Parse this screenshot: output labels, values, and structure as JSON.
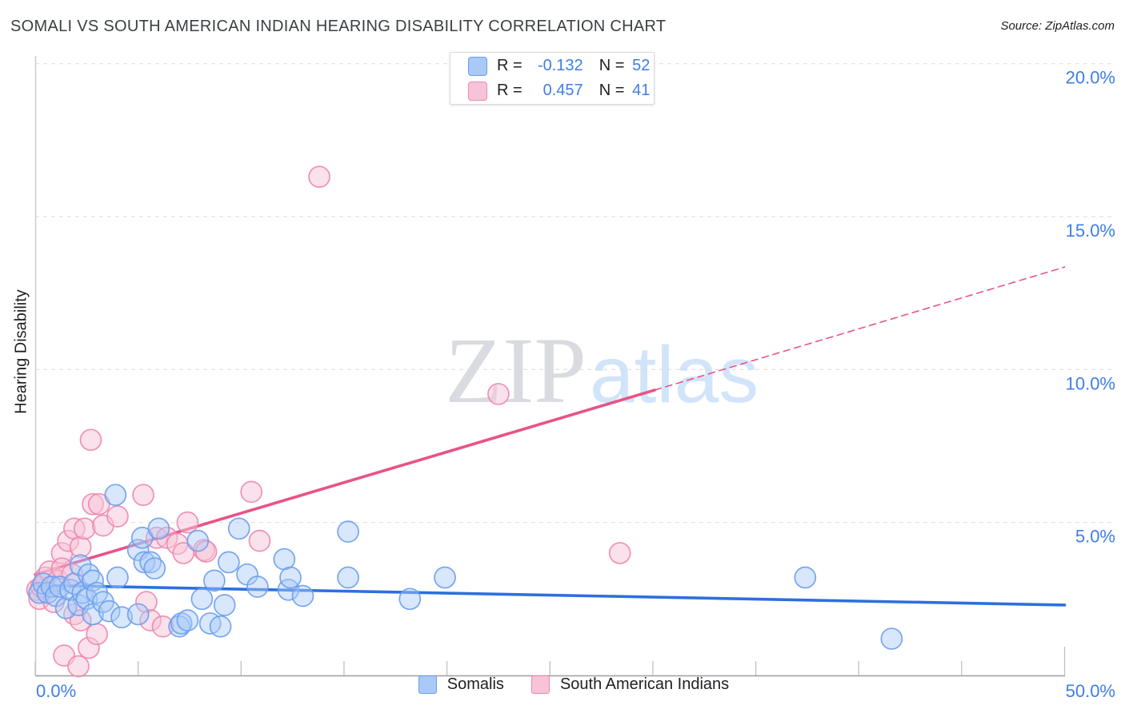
{
  "header": {
    "title": "SOMALI VS SOUTH AMERICAN INDIAN HEARING DISABILITY CORRELATION CHART",
    "source": "Source: ZipAtlas.com"
  },
  "watermark": {
    "zip": "ZIP",
    "atlas": "atlas"
  },
  "legend_box": {
    "rows": [
      {
        "series": "somalis",
        "r_label": "R =",
        "r_value": "-0.132",
        "n_label": "N =",
        "n_value": "52"
      },
      {
        "series": "south-american-indians",
        "r_label": "R =",
        "r_value": "0.457",
        "n_label": "N =",
        "n_value": "41"
      }
    ]
  },
  "bottom_legend": {
    "items": [
      {
        "label": "Somalis"
      },
      {
        "label": "South American Indians"
      }
    ]
  },
  "colors": {
    "accent_blue": "#3e7de8",
    "somali_stroke": "#6a9cf0",
    "somali_fill": "#a9c9f7",
    "somali_line": "#2e6fdd",
    "sai_stroke": "#ee86ad",
    "sai_fill": "#f8c3d8",
    "sai_line": "#e85387",
    "gridline": "#e3e3e3",
    "axis": "#9e9e9e",
    "watermark_zip": "#d9dbe0",
    "watermark_atlas": "#c8def8"
  },
  "chart_data": {
    "type": "scatter",
    "title": "SOMALI VS SOUTH AMERICAN INDIAN HEARING DISABILITY CORRELATION CHART",
    "xlabel": "",
    "ylabel": "Hearing Disability",
    "xlim": [
      0,
      50
    ],
    "ylim": [
      0,
      20.3
    ],
    "grid": "horizontal-dashed",
    "legend_position": "bottom-center",
    "x_tick_values": [
      0,
      5,
      10,
      15,
      20,
      25,
      30,
      35,
      40,
      45,
      50
    ],
    "x_edge_labels": [
      {
        "value": 0,
        "label": "0.0%"
      },
      {
        "value": 50,
        "label": "50.0%"
      }
    ],
    "y_ticks": [
      {
        "value": 20,
        "label": "20.0%"
      },
      {
        "value": 15,
        "label": "15.0%"
      },
      {
        "value": 10,
        "label": "10.0%"
      },
      {
        "value": 5,
        "label": "5.0%"
      }
    ],
    "series": [
      {
        "name": "Somalis",
        "key": "somalis",
        "R": -0.132,
        "N": 52,
        "points": [
          [
            0.2,
            2.7
          ],
          [
            0.4,
            3.0
          ],
          [
            0.6,
            2.7
          ],
          [
            0.8,
            2.9
          ],
          [
            1.0,
            2.6
          ],
          [
            1.2,
            2.9
          ],
          [
            1.5,
            2.2
          ],
          [
            1.7,
            2.8
          ],
          [
            1.9,
            3.0
          ],
          [
            2.1,
            2.3
          ],
          [
            2.2,
            3.6
          ],
          [
            2.3,
            2.7
          ],
          [
            2.5,
            2.5
          ],
          [
            2.6,
            3.3
          ],
          [
            2.8,
            3.1
          ],
          [
            2.8,
            2.0
          ],
          [
            3.0,
            2.7
          ],
          [
            3.3,
            2.4
          ],
          [
            3.6,
            2.1
          ],
          [
            3.9,
            5.9
          ],
          [
            4.0,
            3.2
          ],
          [
            4.2,
            1.9
          ],
          [
            5.0,
            2.0
          ],
          [
            5.0,
            4.1
          ],
          [
            5.2,
            4.5
          ],
          [
            5.3,
            3.7
          ],
          [
            5.6,
            3.7
          ],
          [
            5.8,
            3.5
          ],
          [
            6.0,
            4.8
          ],
          [
            7.0,
            1.6
          ],
          [
            7.1,
            1.7
          ],
          [
            7.4,
            1.8
          ],
          [
            7.9,
            4.4
          ],
          [
            8.1,
            2.5
          ],
          [
            8.5,
            1.7
          ],
          [
            8.7,
            3.1
          ],
          [
            9.0,
            1.6
          ],
          [
            9.2,
            2.3
          ],
          [
            9.4,
            3.7
          ],
          [
            9.9,
            4.8
          ],
          [
            10.3,
            3.3
          ],
          [
            10.8,
            2.9
          ],
          [
            12.1,
            3.8
          ],
          [
            12.3,
            2.8
          ],
          [
            12.4,
            3.2
          ],
          [
            13.0,
            2.6
          ],
          [
            15.2,
            4.7
          ],
          [
            15.2,
            3.2
          ],
          [
            18.2,
            2.5
          ],
          [
            19.9,
            3.2
          ],
          [
            37.4,
            3.2
          ],
          [
            41.6,
            1.2
          ]
        ]
      },
      {
        "name": "South American Indians",
        "key": "south-american-indians",
        "R": 0.457,
        "N": 41,
        "points": [
          [
            0.1,
            2.8
          ],
          [
            0.2,
            2.5
          ],
          [
            0.3,
            2.9
          ],
          [
            0.5,
            3.2
          ],
          [
            0.7,
            3.4
          ],
          [
            0.9,
            2.4
          ],
          [
            1.1,
            3.1
          ],
          [
            1.3,
            4.0
          ],
          [
            1.3,
            3.5
          ],
          [
            1.4,
            0.65
          ],
          [
            1.6,
            4.4
          ],
          [
            1.8,
            3.3
          ],
          [
            1.9,
            4.8
          ],
          [
            1.9,
            2.0
          ],
          [
            2.1,
            0.3
          ],
          [
            2.2,
            4.2
          ],
          [
            2.2,
            1.8
          ],
          [
            2.4,
            4.8
          ],
          [
            2.6,
            0.9
          ],
          [
            2.7,
            7.7
          ],
          [
            2.8,
            5.6
          ],
          [
            3.0,
            1.35
          ],
          [
            3.1,
            5.6
          ],
          [
            3.3,
            4.9
          ],
          [
            4.0,
            5.2
          ],
          [
            5.25,
            5.9
          ],
          [
            5.4,
            2.4
          ],
          [
            5.6,
            1.8
          ],
          [
            5.9,
            4.5
          ],
          [
            6.2,
            1.6
          ],
          [
            6.4,
            4.5
          ],
          [
            6.9,
            4.3
          ],
          [
            7.2,
            4.0
          ],
          [
            7.4,
            5.0
          ],
          [
            8.2,
            4.1
          ],
          [
            8.3,
            4.05
          ],
          [
            10.5,
            6.0
          ],
          [
            10.9,
            4.4
          ],
          [
            13.8,
            16.3
          ],
          [
            22.5,
            9.2
          ],
          [
            28.4,
            4.0
          ]
        ]
      }
    ],
    "trend_lines": [
      {
        "series": "somalis",
        "x": [
          0,
          50
        ],
        "y": [
          2.95,
          2.3
        ],
        "dashed": false
      },
      {
        "series": "south-american-indians",
        "x": [
          0,
          30.1
        ],
        "y": [
          3.3,
          9.33
        ],
        "dashed": false
      },
      {
        "series": "south-american-indians",
        "x": [
          30.1,
          50
        ],
        "y": [
          9.33,
          13.35
        ],
        "dashed": true
      }
    ]
  }
}
